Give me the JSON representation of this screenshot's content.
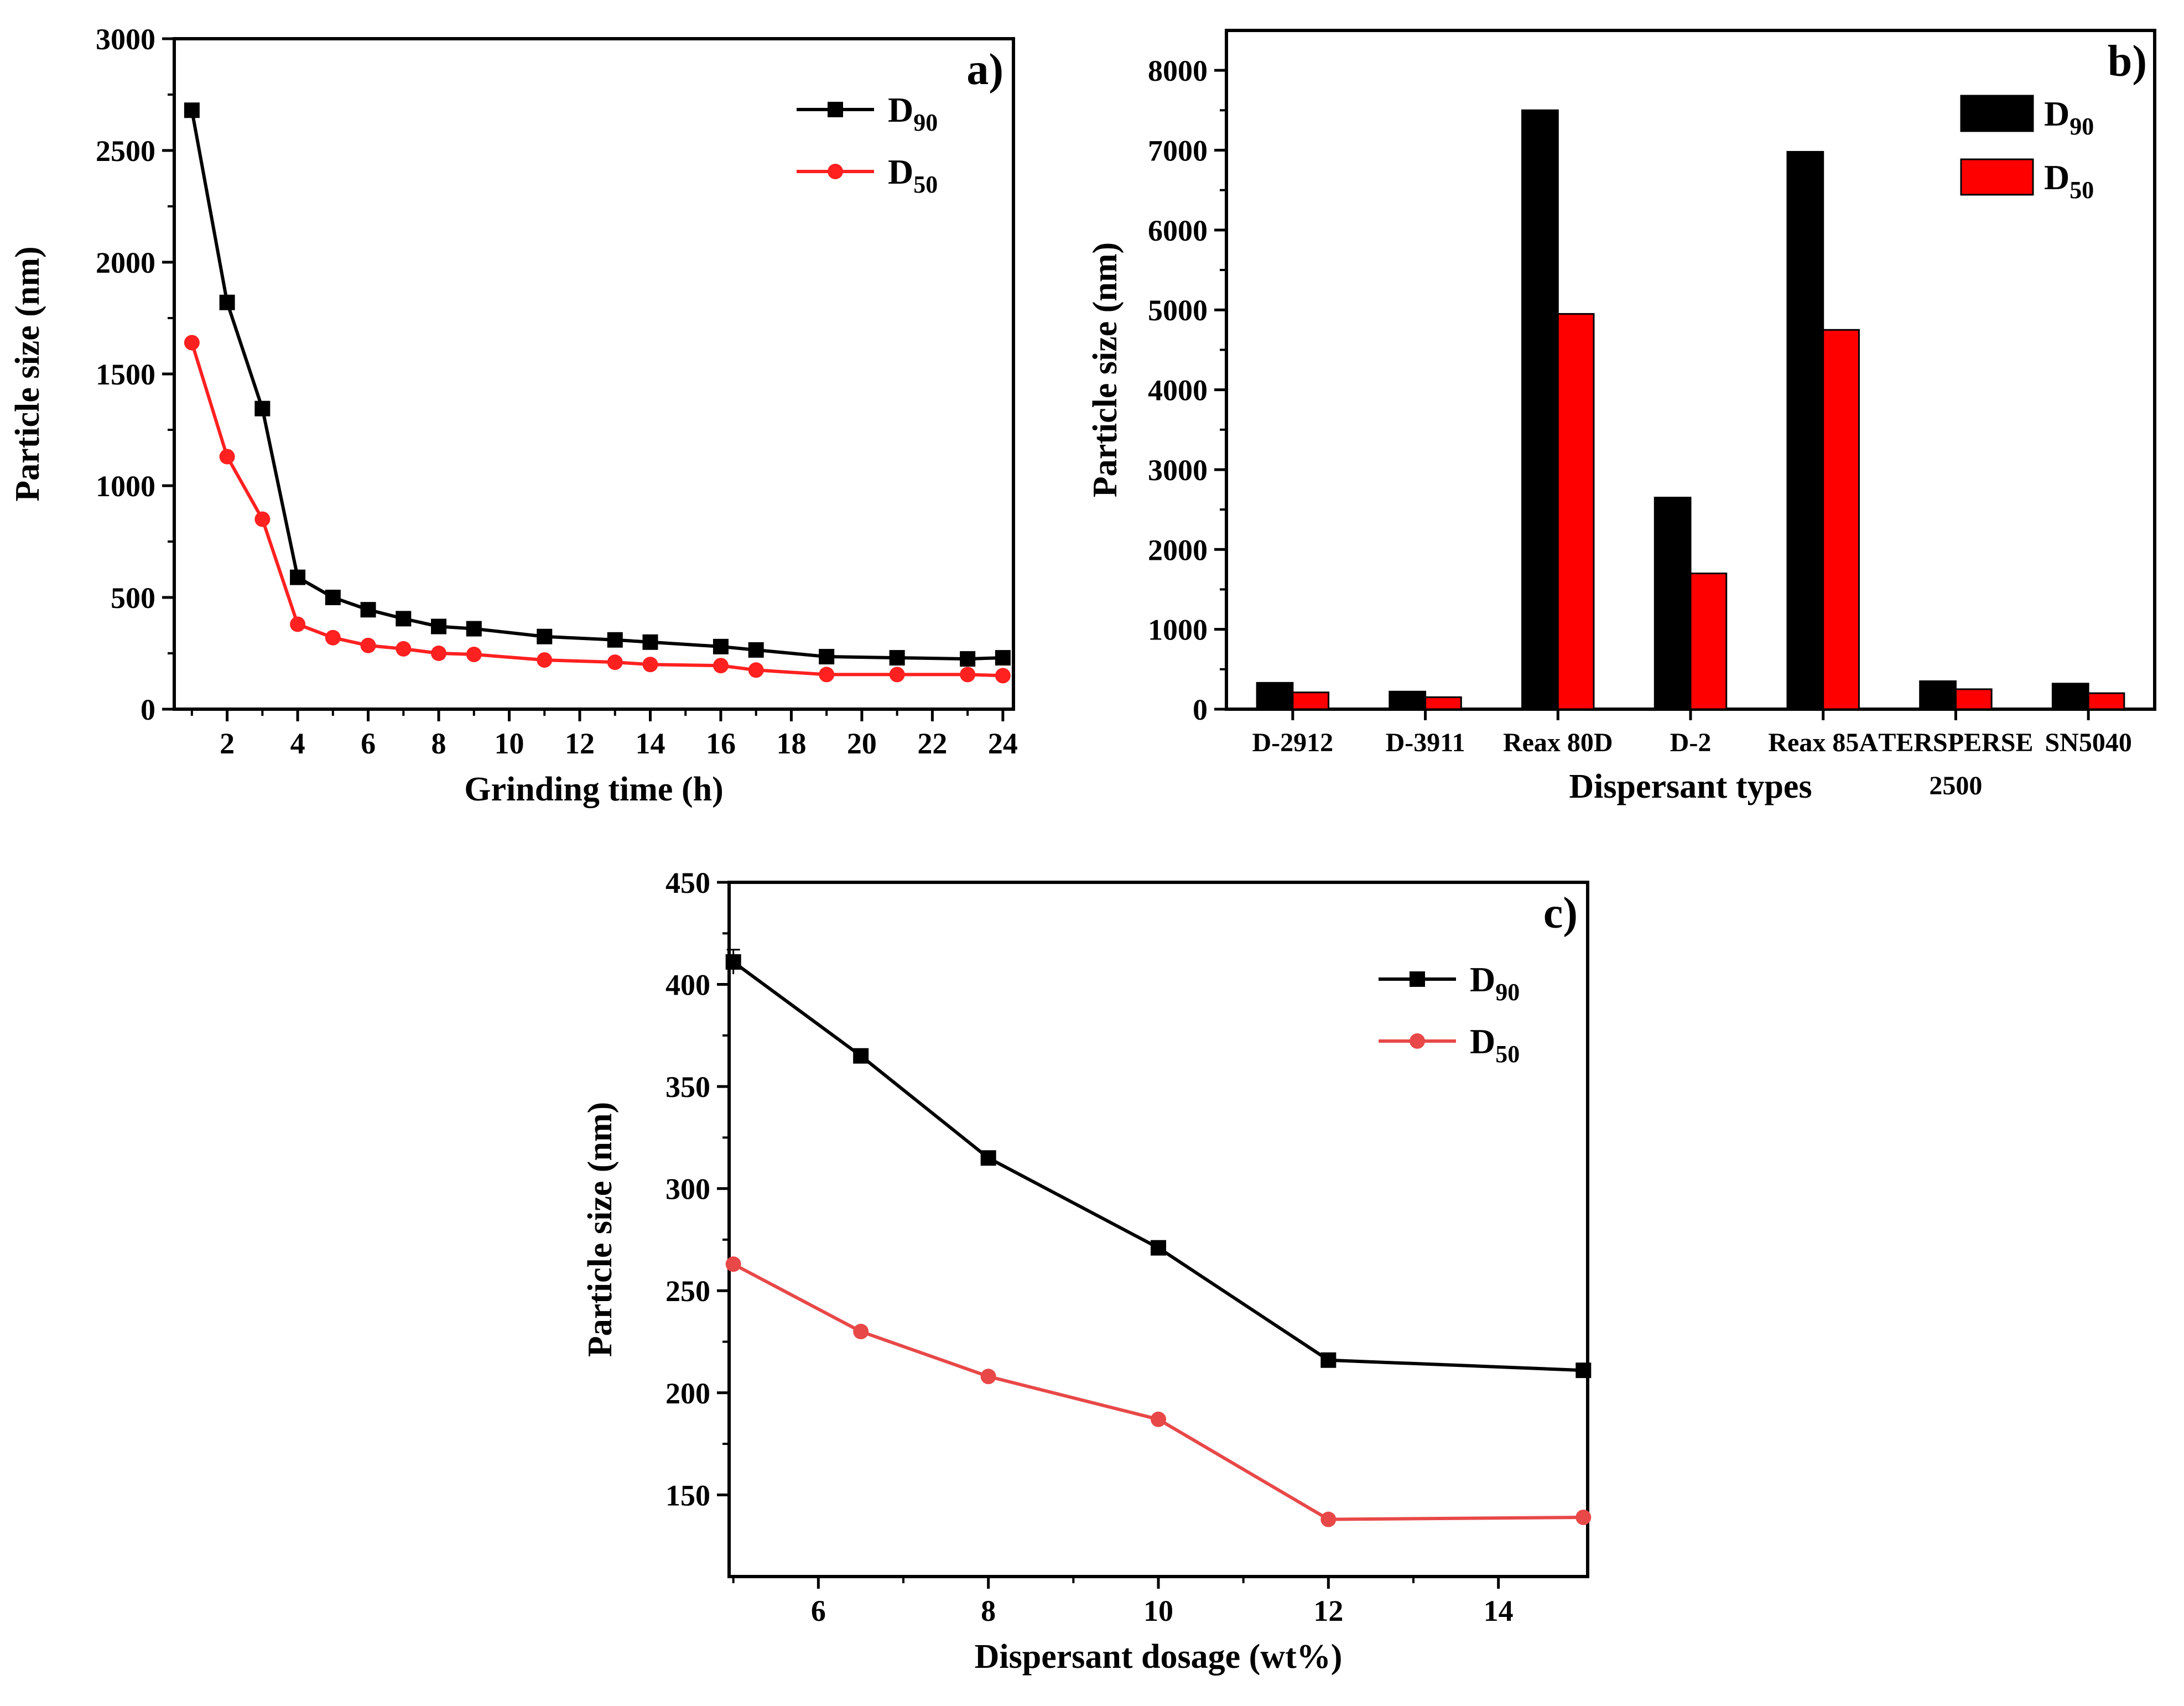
{
  "chart_data": [
    {
      "id": "a",
      "type": "line",
      "panel_label": "a)",
      "title": "",
      "xlabel": "Grinding time (h)",
      "ylabel": "Particle size (nm)",
      "xlim": [
        0.5,
        24.3
      ],
      "ylim": [
        0,
        3000
      ],
      "xticks": [
        2,
        4,
        6,
        8,
        10,
        12,
        14,
        16,
        18,
        20,
        22,
        24
      ],
      "yticks": [
        0,
        500,
        1000,
        1500,
        2000,
        2500,
        3000
      ],
      "legend_position": "top-right",
      "series": [
        {
          "name": "D90",
          "legend_main": "D",
          "legend_sub": "90",
          "color": "#000000",
          "marker": "square",
          "x": [
            1,
            2,
            3,
            4,
            5,
            6,
            7,
            8,
            9,
            11,
            13,
            14,
            16,
            17,
            19,
            21,
            23,
            24
          ],
          "y": [
            2680,
            1820,
            1345,
            590,
            500,
            445,
            405,
            370,
            360,
            325,
            310,
            300,
            280,
            265,
            235,
            230,
            225,
            230
          ]
        },
        {
          "name": "D50",
          "legend_main": "D",
          "legend_sub": "50",
          "color": "#ff2020",
          "marker": "circle",
          "x": [
            1,
            2,
            3,
            4,
            5,
            6,
            7,
            8,
            9,
            11,
            13,
            14,
            16,
            17,
            19,
            21,
            23,
            24
          ],
          "y": [
            1640,
            1130,
            850,
            380,
            320,
            285,
            270,
            250,
            245,
            220,
            210,
            200,
            195,
            175,
            155,
            155,
            155,
            150
          ]
        }
      ]
    },
    {
      "id": "b",
      "type": "bar",
      "panel_label": "b)",
      "title": "",
      "xlabel": "Dispersant types",
      "ylabel": "Particle size (nm)",
      "ylim": [
        0,
        8500
      ],
      "yticks": [
        0,
        1000,
        2000,
        3000,
        4000,
        5000,
        6000,
        7000,
        8000
      ],
      "categories": [
        "D-2912",
        "D-3911",
        "Reax 80D",
        "D-2",
        "Reax 85A",
        "TERSPERSE 2500",
        "SN5040"
      ],
      "category_lines": [
        [
          "D-2912"
        ],
        [
          "D-3911"
        ],
        [
          "Reax 80D"
        ],
        [
          "D-2"
        ],
        [
          "Reax 85A"
        ],
        [
          "TERSPERSE",
          "2500"
        ],
        [
          "SN5040"
        ]
      ],
      "legend_position": "top-right",
      "series": [
        {
          "name": "D90",
          "legend_main": "D",
          "legend_sub": "90",
          "color": "#000000",
          "values": [
            330,
            220,
            7500,
            2650,
            6980,
            350,
            320
          ]
        },
        {
          "name": "D50",
          "legend_main": "D",
          "legend_sub": "50",
          "color": "#ff0000",
          "values": [
            210,
            150,
            4950,
            1700,
            4750,
            250,
            200
          ]
        }
      ]
    },
    {
      "id": "c",
      "type": "line",
      "panel_label": "c)",
      "title": "",
      "xlabel": "Dispersant dosage (wt%)",
      "ylabel": "Particle size (nm)",
      "xlim": [
        4.95,
        15.05
      ],
      "ylim": [
        110,
        450
      ],
      "xticks": [
        6,
        8,
        10,
        12,
        14
      ],
      "yticks": [
        150,
        200,
        250,
        300,
        350,
        400,
        450
      ],
      "legend_position": "top-right",
      "series": [
        {
          "name": "D90",
          "legend_main": "D",
          "legend_sub": "90",
          "color": "#000000",
          "marker": "square",
          "x": [
            5,
            6.5,
            8,
            10,
            12,
            15
          ],
          "y": [
            411,
            365,
            315,
            271,
            216,
            211
          ],
          "error": [
            6,
            0,
            0,
            0,
            0,
            0
          ]
        },
        {
          "name": "D50",
          "legend_main": "D",
          "legend_sub": "50",
          "color": "#e84848",
          "marker": "circle",
          "x": [
            5,
            6.5,
            8,
            10,
            12,
            15
          ],
          "y": [
            263,
            230,
            208,
            187,
            138,
            139
          ]
        }
      ]
    }
  ]
}
